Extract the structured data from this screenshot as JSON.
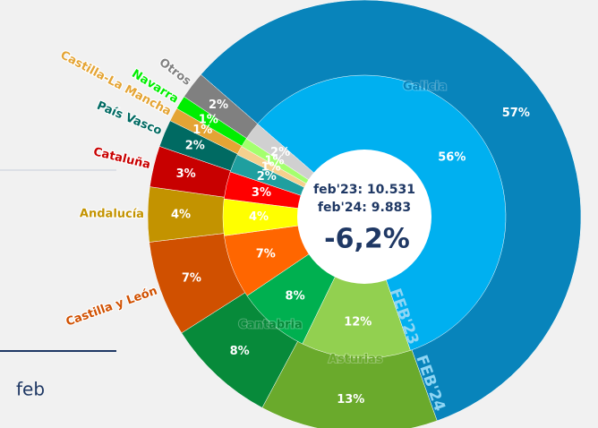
{
  "sidebar": {
    "label": "feb"
  },
  "chart_data": {
    "type": "donut",
    "categories": [
      "Galicia",
      "Asturias",
      "Cantabria",
      "Castilla y León",
      "Andalucía",
      "Cataluña",
      "País Vasco",
      "Castilla-La Mancha",
      "Navarra",
      "Otros"
    ],
    "center_lines": [
      "feb'23: 10.531",
      "feb'24: 9.883"
    ],
    "center_change": "-6,2%",
    "series": [
      {
        "name": "FEB'24",
        "values": [
          57,
          13,
          8,
          7,
          4,
          3,
          2,
          1,
          1,
          2
        ],
        "value_labels": [
          "57%",
          "13%",
          "8%",
          "7%",
          "4%",
          "3%",
          "2%",
          "1%",
          "1%",
          "2%"
        ],
        "colors": [
          "#0884bb",
          "#6aaa2c",
          "#078a3a",
          "#d05000",
          "#c39300",
          "#c80000",
          "#006a62",
          "#e4a434",
          "#00ee00",
          "#808080"
        ]
      },
      {
        "name": "FEB'23",
        "values": [
          56,
          12,
          8,
          7,
          4,
          3,
          2,
          1,
          1,
          2
        ],
        "value_labels": [
          "56%",
          "12%",
          "8%",
          "7%",
          "4%",
          "3%",
          "2%",
          "1%",
          "1%",
          "2%"
        ],
        "colors": [
          "#00b0f0",
          "#92d050",
          "#00b050",
          "#ff6600",
          "#ffff00",
          "#ff0000",
          "#1f9f9f",
          "#f5d08e",
          "#a4ff6e",
          "#d0d0d0"
        ]
      }
    ]
  }
}
